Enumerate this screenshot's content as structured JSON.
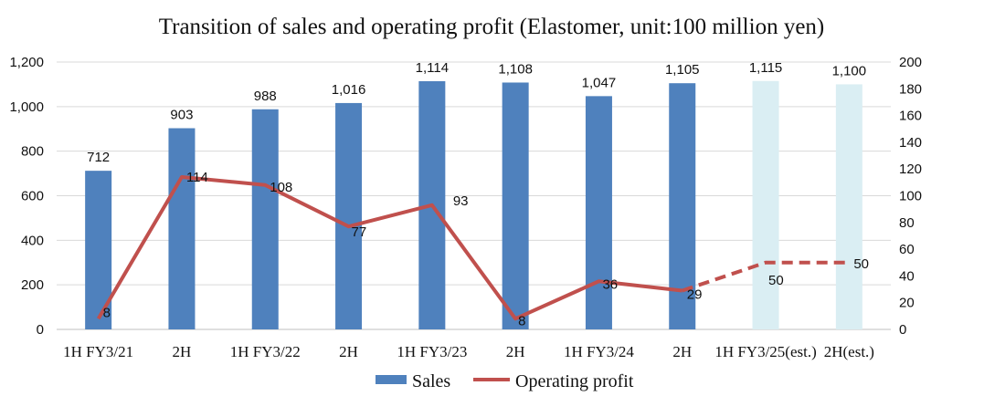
{
  "chart_data": {
    "type": "bar",
    "title": "Transition of sales and operating profit (Elastomer, unit:100 million yen)",
    "categories": [
      "1H FY3/21",
      "2H",
      "1H FY3/22",
      "2H",
      "1H FY3/23",
      "2H",
      "1H FY3/24",
      "2H",
      "1H FY3/25(est.)",
      "2H(est.)"
    ],
    "series": [
      {
        "name": "Sales",
        "type": "bar",
        "axis": "left",
        "values": [
          712,
          903,
          988,
          1016,
          1114,
          1108,
          1047,
          1105,
          1115,
          1100
        ],
        "value_labels": [
          "712",
          "903",
          "988",
          "1,016",
          "1,114",
          "1,108",
          "1,047",
          "1,105",
          "1,115",
          "1,100"
        ],
        "color": "#4f81bd",
        "estimate_color": "#daeef3"
      },
      {
        "name": "Operating profit",
        "type": "line",
        "axis": "right",
        "values": [
          8,
          114,
          108,
          77,
          93,
          8,
          36,
          29,
          50,
          50
        ],
        "value_labels": [
          "8",
          "114",
          "108",
          "77",
          "93",
          "8",
          "36",
          "29",
          "50",
          "50"
        ],
        "color": "#c0504d"
      }
    ],
    "estimate_from_index": 8,
    "y_left": {
      "lim": [
        0,
        1200
      ],
      "ticks": [
        0,
        200,
        400,
        600,
        800,
        1000,
        1200
      ],
      "tick_labels": [
        "0",
        "200",
        "400",
        "600",
        "800",
        "1,000",
        "1,200"
      ]
    },
    "y_right": {
      "lim": [
        0,
        200
      ],
      "ticks": [
        0,
        20,
        40,
        60,
        80,
        100,
        120,
        140,
        160,
        180,
        200
      ],
      "tick_labels": [
        "0",
        "20",
        "40",
        "60",
        "80",
        "100",
        "120",
        "140",
        "160",
        "180",
        "200"
      ]
    },
    "grid": true,
    "legend": "bottom"
  }
}
